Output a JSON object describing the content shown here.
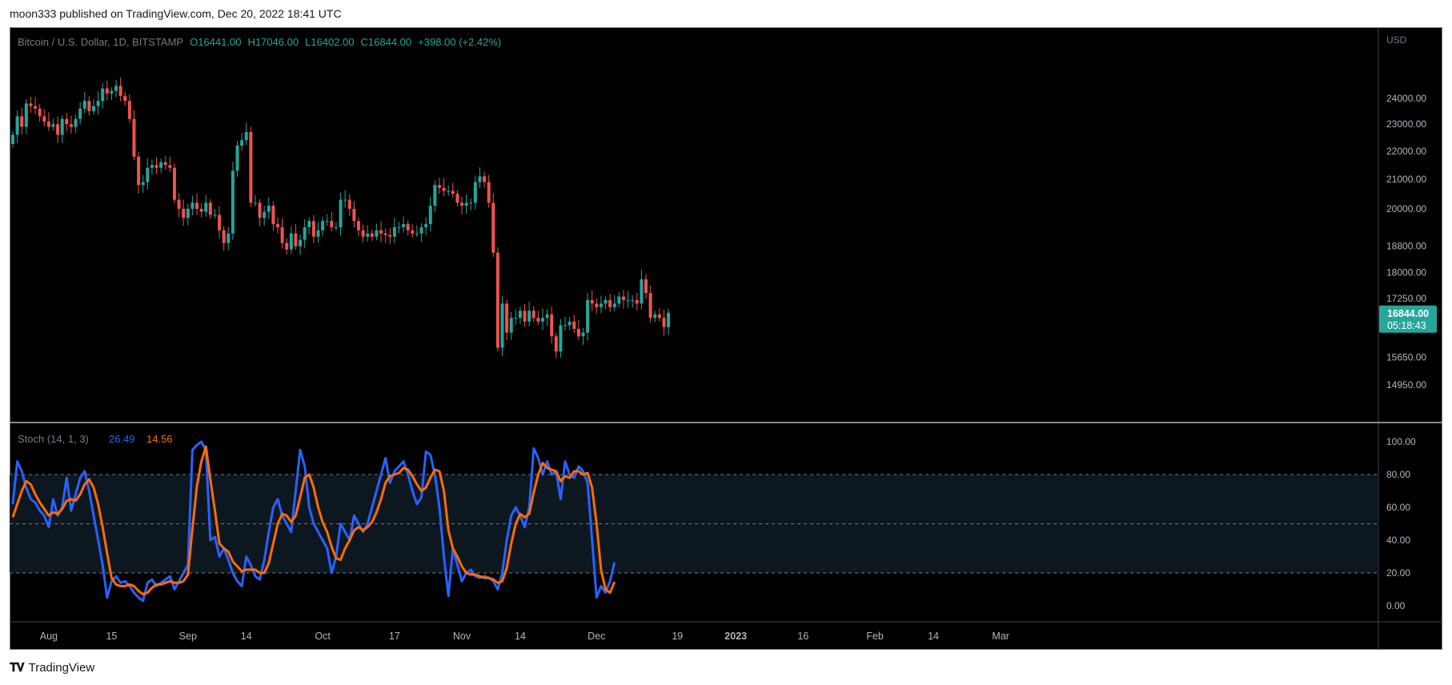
{
  "header": {
    "text": "moon333 published on TradingView.com, Dec 20, 2022 18:41 UTC"
  },
  "footer": {
    "brand": "TradingView"
  },
  "colors": {
    "up": "#26a69a",
    "down": "#ef5350",
    "k_line": "#2962ff",
    "d_line": "#ff6d00",
    "price_badge": "#26a69a"
  },
  "chart_data": {
    "type": "candlestick",
    "symbol_info": {
      "title": "Bitcoin / U.S. Dollar, 1D, BITSTAMP",
      "open": "O16441.00",
      "high": "H17046.00",
      "low": "L16402.00",
      "close": "C16844.00",
      "change": "+398.00 (+2.42%)"
    },
    "currency_label": "USD",
    "price_axis": {
      "ticks": [
        24000,
        23000,
        22000,
        21000,
        20000,
        18800,
        18000,
        17250,
        15650,
        14950
      ],
      "tick_labels": [
        "24000.00",
        "23000.00",
        "22000.00",
        "21000.00",
        "20000.00",
        "18800.00",
        "18000.00",
        "17250.00",
        "15650.00",
        "14950.00"
      ],
      "scale": "log"
    },
    "last_price": {
      "value": "16844.00",
      "countdown": "05:18:43",
      "price": 16844
    },
    "x_axis": {
      "labels": [
        {
          "text": "Aug",
          "date": "2022-08-01"
        },
        {
          "text": "15",
          "date": "2022-08-15"
        },
        {
          "text": "Sep",
          "date": "2022-09-01"
        },
        {
          "text": "14",
          "date": "2022-09-14"
        },
        {
          "text": "Oct",
          "date": "2022-10-01"
        },
        {
          "text": "17",
          "date": "2022-10-17"
        },
        {
          "text": "Nov",
          "date": "2022-11-01"
        },
        {
          "text": "14",
          "date": "2022-11-14"
        },
        {
          "text": "Dec",
          "date": "2022-12-01"
        },
        {
          "text": "19",
          "date": "2022-12-19"
        },
        {
          "text": "2023",
          "date": "2023-01-01"
        },
        {
          "text": "16",
          "date": "2023-01-16"
        },
        {
          "text": "Feb",
          "date": "2023-02-01"
        },
        {
          "text": "14",
          "date": "2023-02-14"
        },
        {
          "text": "Mar",
          "date": "2023-03-01"
        }
      ]
    },
    "candles": {
      "start_date": "2022-07-24",
      "interval": "1D",
      "close": [
        22600,
        23300,
        22900,
        23800,
        23700,
        23600,
        23300,
        23100,
        22900,
        23000,
        22600,
        23200,
        23000,
        22900,
        23200,
        23600,
        23900,
        23500,
        23700,
        23900,
        24400,
        24200,
        24300,
        24500,
        24100,
        23900,
        23200,
        21800,
        20800,
        20900,
        21400,
        21500,
        21400,
        21600,
        21500,
        21400,
        20300,
        20000,
        19700,
        20000,
        20200,
        20000,
        19900,
        20200,
        19800,
        19800,
        19300,
        18900,
        19200,
        21300,
        22200,
        22400,
        22700,
        20200,
        20200,
        19700,
        19900,
        20100,
        19500,
        19400,
        18900,
        18700,
        19200,
        18800,
        19000,
        19400,
        19600,
        19100,
        19300,
        19600,
        19600,
        19400,
        19400,
        20300,
        20300,
        20000,
        19600,
        19300,
        19100,
        19200,
        19100,
        19300,
        19200,
        19150,
        19100,
        19400,
        19400,
        19500,
        19300,
        19200,
        19200,
        19400,
        19500,
        20100,
        20800,
        20700,
        20600,
        20600,
        20500,
        20200,
        20100,
        20200,
        20200,
        20900,
        21100,
        20900,
        20200,
        18600,
        15900,
        17100,
        16300,
        16700,
        16700,
        16900,
        16600,
        16900,
        16700,
        16600,
        16700,
        16800,
        16200,
        15800,
        16500,
        16500,
        16600,
        16400,
        16200,
        16300,
        17200,
        17100,
        17000,
        17100,
        17200,
        17000,
        17100,
        17300,
        17200,
        17200,
        17200,
        17100,
        17800,
        17400,
        16700,
        16800,
        16700,
        16450,
        16844
      ]
    },
    "indicator": {
      "name": "Stoch (14, 1, 3)",
      "k_value": "26.49",
      "d_value": "14.56",
      "axis_ticks": [
        100,
        80,
        60,
        40,
        20,
        0
      ],
      "axis_tick_labels": [
        "100.00",
        "80.00",
        "60.00",
        "40.00",
        "20.00",
        "0.00"
      ],
      "upper_band": 80,
      "middle_band": 50,
      "lower_band": 20,
      "k": [
        62,
        88,
        82,
        72,
        65,
        63,
        58,
        55,
        48,
        65,
        55,
        60,
        78,
        58,
        68,
        78,
        82,
        70,
        55,
        40,
        25,
        5,
        15,
        18,
        14,
        15,
        12,
        8,
        5,
        3,
        14,
        16,
        12,
        14,
        16,
        18,
        10,
        15,
        20,
        25,
        95,
        98,
        100,
        95,
        40,
        42,
        30,
        35,
        28,
        20,
        15,
        12,
        30,
        25,
        18,
        16,
        28,
        45,
        60,
        65,
        55,
        50,
        45,
        70,
        95,
        85,
        60,
        50,
        45,
        40,
        35,
        20,
        30,
        50,
        45,
        40,
        55,
        50,
        45,
        50,
        60,
        70,
        80,
        90,
        75,
        82,
        85,
        88,
        80,
        70,
        62,
        66,
        94,
        92,
        80,
        60,
        30,
        6,
        35,
        25,
        15,
        20,
        22,
        18,
        17,
        18,
        17,
        15,
        10,
        20,
        40,
        55,
        60,
        55,
        48,
        60,
        96,
        90,
        80,
        88,
        80,
        82,
        65,
        88,
        80,
        78,
        85,
        82,
        75,
        40,
        5,
        12,
        8,
        15,
        26.49
      ],
      "d": [
        54,
        62,
        70,
        76,
        74,
        68,
        63,
        59,
        55,
        57,
        56,
        59,
        64,
        65,
        64,
        68,
        74,
        77,
        72,
        62,
        48,
        32,
        17,
        13,
        12,
        12,
        13,
        12,
        9,
        7,
        8,
        11,
        13,
        13,
        14,
        15,
        14,
        14,
        15,
        19,
        47,
        73,
        88,
        97,
        77,
        58,
        38,
        35,
        33,
        27,
        24,
        21,
        22,
        22,
        22,
        20,
        20,
        26,
        38,
        50,
        56,
        55,
        51,
        55,
        66,
        78,
        80,
        72,
        60,
        51,
        45,
        36,
        29,
        28,
        35,
        40,
        46,
        48,
        46,
        48,
        51,
        57,
        65,
        75,
        79,
        80,
        81,
        84,
        83,
        79,
        74,
        70,
        72,
        78,
        83,
        82,
        70,
        46,
        35,
        30,
        24,
        20,
        19,
        19,
        18,
        17,
        17,
        16,
        14,
        15,
        23,
        38,
        50,
        56,
        54,
        56,
        69,
        80,
        87,
        84,
        83,
        82,
        76,
        79,
        78,
        82,
        82,
        80,
        81,
        72,
        50,
        22,
        10,
        8,
        14.56
      ]
    }
  }
}
